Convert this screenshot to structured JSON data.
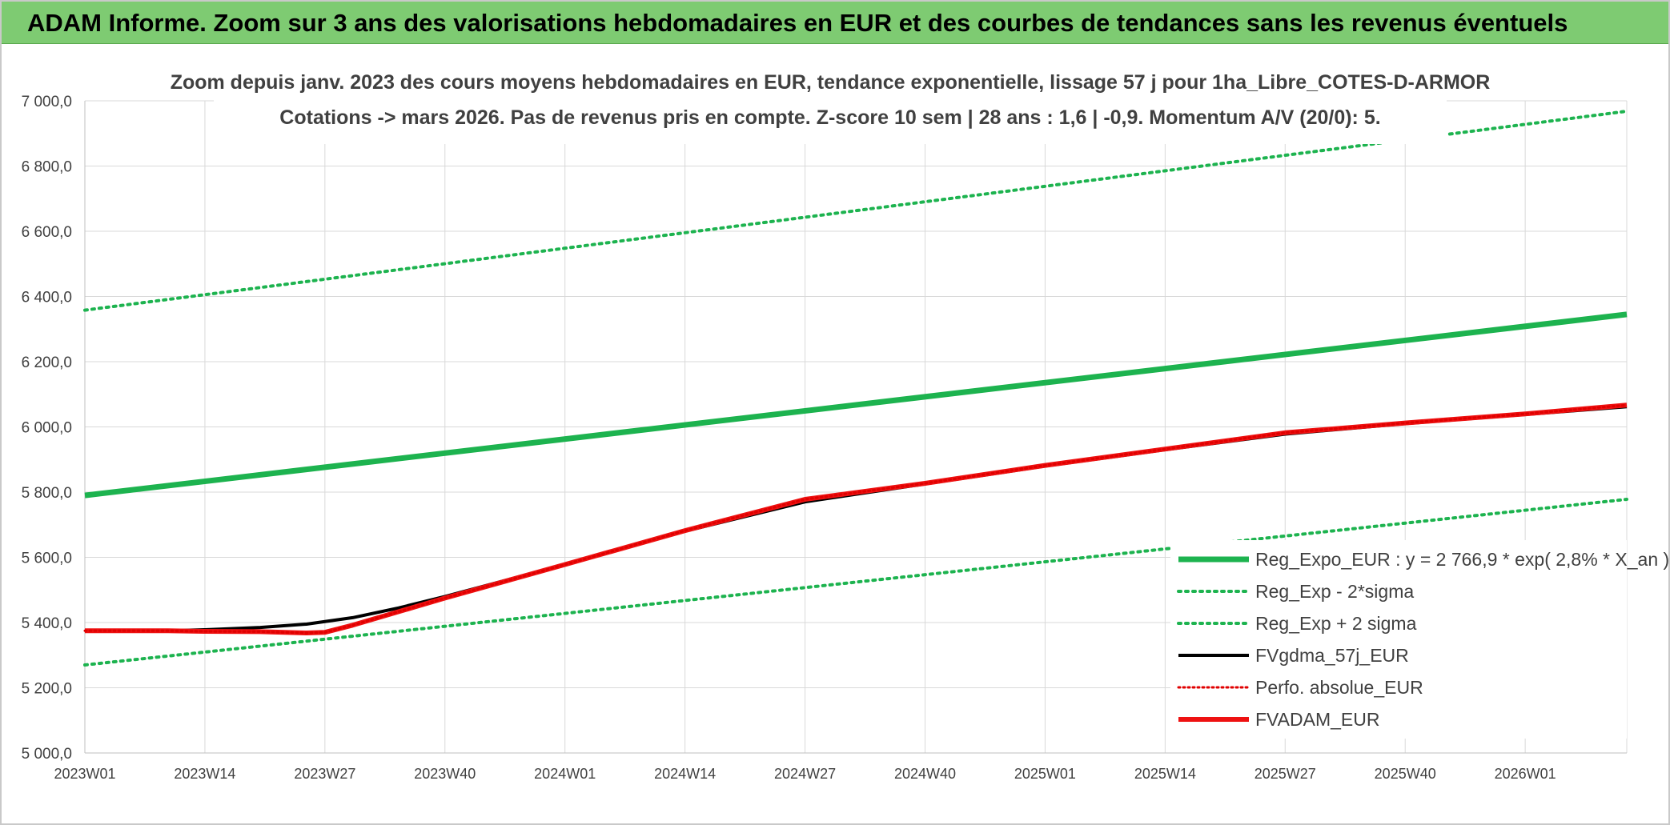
{
  "banner": {
    "title": "ADAM Informe. Zoom sur 3 ans des valorisations hebdomadaires en EUR et des courbes de tendances sans les revenus éventuels"
  },
  "chart_data": {
    "type": "line",
    "title": "Zoom depuis janv. 2023 des cours moyens hebdomadaires en EUR, tendance exponentielle, lissage 57 j pour 1ha_Libre_COTES-D-ARMOR",
    "subtitle": "Cotations -> mars 2026. Pas de revenus pris en compte. Z-score 10 sem | 28 ans : 1,6 | -0,9. Momentum A/V (20/0): 5.",
    "xlabel": "",
    "ylabel": "",
    "ylim": [
      5000,
      7000
    ],
    "yticks": [
      "5 000,0",
      "5 200,0",
      "5 400,0",
      "5 600,0",
      "5 800,0",
      "6 000,0",
      "6 200,0",
      "6 400,0",
      "6 600,0",
      "6 800,0",
      "7 000,0"
    ],
    "x_tick_labels": [
      "2023W01",
      "2023W14",
      "2023W27",
      "2023W40",
      "2024W01",
      "2024W14",
      "2024W27",
      "2024W40",
      "2025W01",
      "2025W14",
      "2025W27",
      "2025W40",
      "2026W01"
    ],
    "grid": true,
    "legend_position": "right",
    "colors": {
      "trend": "#1db34f",
      "sigma": "#1db34f",
      "fvgdma": "#000000",
      "perfo": "#e00000",
      "fvadam": "#ee1111"
    },
    "series": [
      {
        "name": "Reg_Expo_EUR : y = 2 766,9 * exp( 2,8% *  X_an )",
        "key": "trend",
        "style": "solid-thick",
        "x": [
          "2023W01",
          "2026W12"
        ],
        "values": [
          5790,
          6345
        ]
      },
      {
        "name": "Reg_Exp - 2*sigma",
        "key": "sigma_low",
        "style": "dotted",
        "x": [
          "2023W01",
          "2026W12"
        ],
        "values": [
          5270,
          5778
        ]
      },
      {
        "name": "Reg_Exp + 2 sigma",
        "key": "sigma_high",
        "style": "dotted",
        "x": [
          "2023W01",
          "2026W12"
        ],
        "values": [
          6358,
          6968
        ]
      },
      {
        "name": "FVgdma_57j_EUR",
        "key": "fvgdma",
        "style": "solid",
        "x": [
          "2023W01",
          "2023W10",
          "2023W14",
          "2023W20",
          "2023W25",
          "2023W30",
          "2023W35",
          "2023W40",
          "2024W01",
          "2024W14",
          "2024W27",
          "2024W40",
          "2025W01",
          "2025W14",
          "2025W27",
          "2025W40",
          "2026W01",
          "2026W12"
        ],
        "values": [
          5375,
          5375,
          5378,
          5385,
          5395,
          5415,
          5445,
          5480,
          5578,
          5680,
          5770,
          5825,
          5880,
          5930,
          5978,
          6010,
          6038,
          6062
        ]
      },
      {
        "name": "Perfo. absolue_EUR",
        "key": "perfo",
        "style": "dotted",
        "x": [
          "2023W01",
          "2023W10",
          "2023W14",
          "2023W20",
          "2023W25",
          "2023W27",
          "2023W30",
          "2023W40",
          "2024W01",
          "2024W14",
          "2024W27",
          "2024W40",
          "2025W01",
          "2025W14",
          "2025W27",
          "2025W40",
          "2026W01",
          "2026W12"
        ],
        "values": [
          5375,
          5375,
          5373,
          5372,
          5368,
          5370,
          5392,
          5475,
          5578,
          5682,
          5778,
          5827,
          5882,
          5932,
          5982,
          6012,
          6040,
          6067
        ]
      },
      {
        "name": "FVADAM_EUR",
        "key": "fvadam",
        "style": "solid-thick",
        "x": [
          "2023W01",
          "2023W10",
          "2023W14",
          "2023W20",
          "2023W25",
          "2023W27",
          "2023W30",
          "2023W40",
          "2024W01",
          "2024W14",
          "2024W27",
          "2024W40",
          "2025W01",
          "2025W14",
          "2025W27",
          "2025W40",
          "2026W01",
          "2026W12"
        ],
        "values": [
          5375,
          5375,
          5373,
          5372,
          5368,
          5370,
          5392,
          5475,
          5578,
          5682,
          5778,
          5827,
          5882,
          5932,
          5982,
          6012,
          6040,
          6067
        ]
      }
    ]
  }
}
